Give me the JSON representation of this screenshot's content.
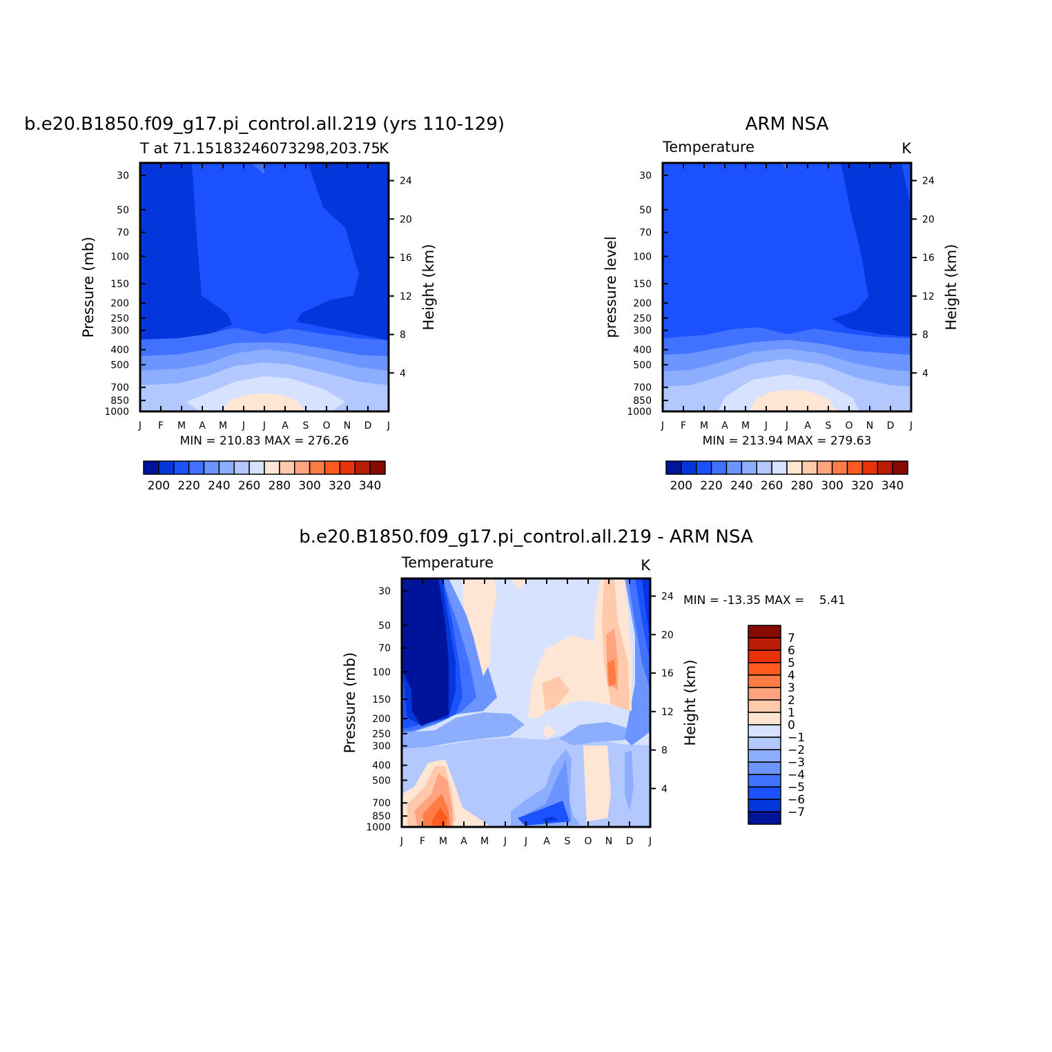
{
  "chart_data": [
    {
      "type": "heatmap",
      "title": "b.e20.B1850.f09_g17.pi_control.all.219 (yrs 110-129)",
      "left_title": "T at 71.15183246073298,203.75",
      "right_title": "K",
      "ylabel": "Pressure (mb)",
      "y2label": "Height (km)",
      "x": [
        "J",
        "F",
        "M",
        "A",
        "M",
        "J",
        "J",
        "A",
        "S",
        "O",
        "N",
        "D",
        "J"
      ],
      "y": [
        1000,
        850,
        700,
        500,
        400,
        300,
        250,
        200,
        150,
        100,
        70,
        50,
        30
      ],
      "y2": [
        4,
        8,
        12,
        16,
        20,
        24
      ],
      "stats": "MIN = 210.83  MAX = 276.26",
      "min": 210.83,
      "max": 276.26,
      "colorbar_labels": [
        "200",
        "220",
        "240",
        "260",
        "280",
        "300",
        "320",
        "340"
      ],
      "colorbar_levels": [
        190,
        200,
        210,
        220,
        230,
        240,
        250,
        260,
        270,
        280,
        290,
        300,
        310,
        320,
        330,
        340,
        350
      ],
      "approx_levels": [
        {
          "p": 30,
          "values": [
            211,
            211,
            211,
            214,
            214,
            214,
            215,
            214,
            214,
            212,
            211,
            211,
            211
          ]
        },
        {
          "p": 100,
          "values": [
            211,
            211,
            212,
            214,
            214,
            214,
            214,
            214,
            214,
            213,
            212,
            211,
            211
          ]
        },
        {
          "p": 200,
          "values": [
            211,
            211,
            212,
            214,
            216,
            216,
            217,
            216,
            215,
            213,
            212,
            211,
            211
          ]
        },
        {
          "p": 300,
          "values": [
            219,
            219,
            219,
            221,
            222,
            224,
            225,
            224,
            222,
            221,
            219,
            219,
            219
          ]
        },
        {
          "p": 400,
          "values": [
            229,
            229,
            230,
            231,
            233,
            235,
            236,
            235,
            233,
            231,
            230,
            229,
            229
          ]
        },
        {
          "p": 500,
          "values": [
            237,
            237,
            238,
            240,
            242,
            245,
            246,
            245,
            242,
            240,
            238,
            237,
            237
          ]
        },
        {
          "p": 700,
          "values": [
            249,
            249,
            250,
            253,
            256,
            259,
            261,
            259,
            256,
            253,
            251,
            249,
            249
          ]
        },
        {
          "p": 850,
          "values": [
            252,
            252,
            254,
            258,
            264,
            268,
            270,
            268,
            264,
            258,
            254,
            252,
            252
          ]
        },
        {
          "p": 1000,
          "values": [
            252,
            251,
            253,
            258,
            266,
            272,
            275,
            272,
            265,
            258,
            254,
            252,
            252
          ]
        }
      ]
    },
    {
      "type": "heatmap",
      "title": "ARM NSA",
      "left_title": "Temperature",
      "right_title": "K",
      "ylabel": "pressure level",
      "y2label": "Height (km)",
      "x": [
        "J",
        "F",
        "M",
        "A",
        "M",
        "J",
        "J",
        "A",
        "S",
        "O",
        "N",
        "D",
        "J"
      ],
      "y": [
        1000,
        850,
        700,
        500,
        400,
        300,
        250,
        200,
        150,
        100,
        70,
        50,
        30
      ],
      "y2": [
        4,
        8,
        12,
        16,
        20,
        24
      ],
      "stats": "MIN = 213.94  MAX = 279.63",
      "min": 213.94,
      "max": 279.63,
      "colorbar_labels": [
        "200",
        "220",
        "240",
        "260",
        "280",
        "300",
        "320",
        "340"
      ],
      "colorbar_levels": [
        190,
        200,
        210,
        220,
        230,
        240,
        250,
        260,
        270,
        280,
        290,
        300,
        310,
        320,
        330,
        340,
        350
      ]
    },
    {
      "type": "heatmap",
      "title": "b.e20.B1850.f09_g17.pi_control.all.219 - ARM NSA",
      "left_title": "Temperature",
      "right_title": "K",
      "ylabel": "Pressure (mb)",
      "y2label": "Height (km)",
      "x": [
        "J",
        "F",
        "M",
        "A",
        "M",
        "J",
        "J",
        "A",
        "S",
        "O",
        "N",
        "D",
        "J"
      ],
      "y": [
        1000,
        850,
        700,
        500,
        400,
        300,
        250,
        200,
        150,
        100,
        70,
        50,
        30
      ],
      "y2": [
        4,
        8,
        12,
        16,
        20,
        24
      ],
      "stats": "MIN = -13.35 MAX =    5.41",
      "min": -13.35,
      "max": 5.41,
      "colorbar_labels": [
        "7",
        "6",
        "5",
        "4",
        "3",
        "2",
        "1",
        "0",
        "-1",
        "-2",
        "-3",
        "-4",
        "-5",
        "-6",
        "-7"
      ],
      "colorbar_levels": [
        8,
        7,
        6,
        5,
        4,
        3,
        2,
        1,
        0,
        -1,
        -2,
        -3,
        -4,
        -5,
        -6,
        -7,
        -8
      ],
      "approx_levels": [
        {
          "p": 30,
          "values": [
            -9,
            -9,
            -3,
            0.8,
            0.5,
            -0.2,
            -0.2,
            -0.3,
            -0.5,
            -0.3,
            1.5,
            -1,
            -7
          ]
        },
        {
          "p": 100,
          "values": [
            -5,
            -9,
            -4,
            -0.3,
            0.3,
            -0.3,
            -0.3,
            0.8,
            0.6,
            0.2,
            2.5,
            -0.5,
            -6
          ]
        },
        {
          "p": 200,
          "values": [
            -6,
            -9,
            -6,
            -3,
            -1.5,
            -0.8,
            -0.5,
            -1,
            -2,
            -1.5,
            -1.5,
            -0.5,
            -4
          ]
        },
        {
          "p": 300,
          "values": [
            -3,
            -2,
            -1.5,
            -1,
            -1,
            -0.6,
            -0.5,
            -0.8,
            -1,
            -0.6,
            0.2,
            -0.5,
            -1
          ]
        },
        {
          "p": 500,
          "values": [
            -0.5,
            0.5,
            1.5,
            -0.5,
            -1,
            -1,
            -1.5,
            -2,
            -2.5,
            -0.5,
            0.4,
            -1.5,
            -0.5
          ]
        },
        {
          "p": 700,
          "values": [
            0.8,
            1.5,
            2.5,
            -0.5,
            -1,
            -1,
            -2,
            -2.5,
            -2,
            -0.5,
            0.3,
            -1,
            -0.5
          ]
        },
        {
          "p": 850,
          "values": [
            1.2,
            2.5,
            4,
            0.3,
            -0.5,
            -1,
            -3,
            -4,
            -3,
            -0.5,
            0.5,
            -0.5,
            -0.5
          ]
        },
        {
          "p": 1000,
          "values": [
            0.3,
            1.5,
            4.5,
            0.3,
            0.2,
            -0.5,
            -1.5,
            -2,
            -2,
            -0.8,
            -0.5,
            -1,
            -1
          ]
        }
      ]
    }
  ]
}
